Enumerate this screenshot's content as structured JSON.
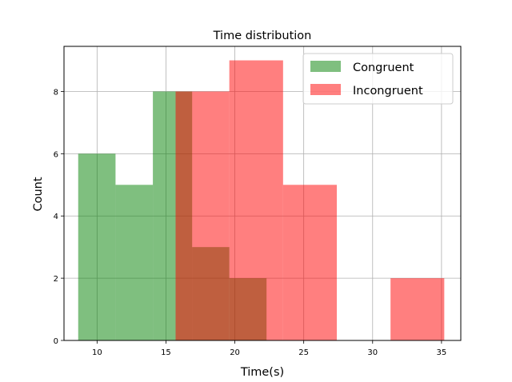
{
  "chart_data": {
    "type": "bar",
    "title": "Time distribution",
    "xlabel": "Time(s)",
    "ylabel": "Count",
    "xlim": [
      7.6,
      36.4
    ],
    "ylim": [
      0,
      9.45
    ],
    "xticks": [
      10,
      15,
      20,
      25,
      30,
      35
    ],
    "yticks": [
      0,
      2,
      4,
      6,
      8
    ],
    "grid": true,
    "legend_position": "top-right",
    "series": [
      {
        "name": "Congruent",
        "color": "#008000",
        "alpha": 0.5,
        "bins": [
          {
            "x0": 8.63,
            "x1": 11.34,
            "count": 6
          },
          {
            "x0": 11.34,
            "x1": 14.05,
            "count": 5
          },
          {
            "x0": 14.05,
            "x1": 15.7,
            "count": 8
          },
          {
            "x0": 15.7,
            "x1": 16.9,
            "count": 8
          },
          {
            "x0": 16.9,
            "x1": 19.6,
            "count": 3
          },
          {
            "x0": 19.6,
            "x1": 22.3,
            "count": 2
          }
        ]
      },
      {
        "name": "Incongruent",
        "color": "#ff0000",
        "alpha": 0.5,
        "bins": [
          {
            "x0": 15.7,
            "x1": 19.6,
            "count": 8
          },
          {
            "x0": 19.6,
            "x1": 23.5,
            "count": 9
          },
          {
            "x0": 23.5,
            "x1": 27.4,
            "count": 5
          },
          {
            "x0": 27.4,
            "x1": 31.3,
            "count": 0
          },
          {
            "x0": 31.3,
            "x1": 35.2,
            "count": 2
          }
        ]
      }
    ]
  }
}
